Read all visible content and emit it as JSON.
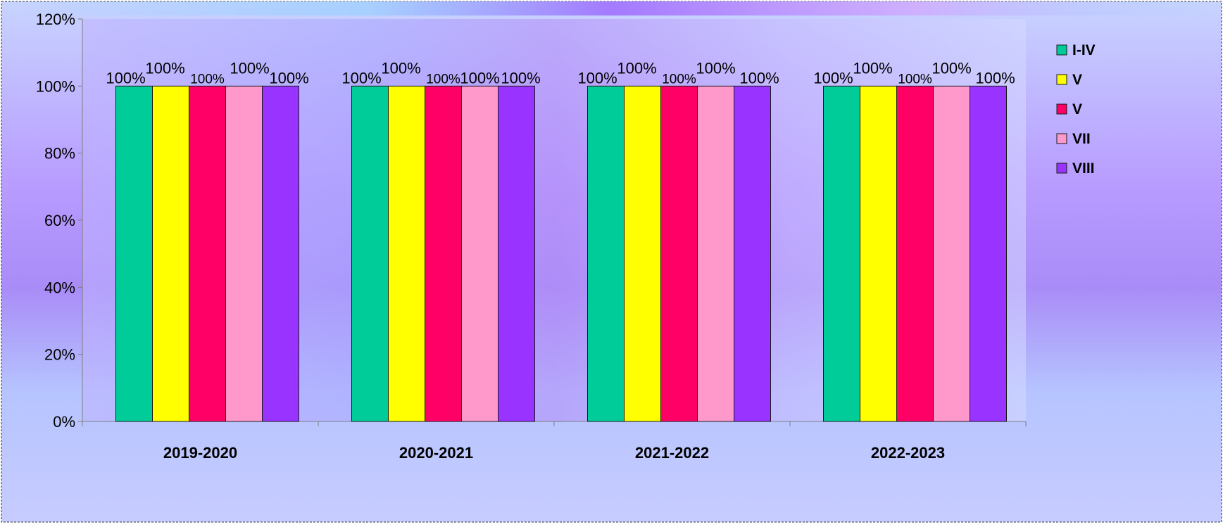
{
  "chart_data": {
    "type": "bar",
    "categories": [
      "2019-2020",
      "2020-2021",
      "2021-2022",
      "2022-2023"
    ],
    "series": [
      {
        "name": "I-IV",
        "color": "#00cc99",
        "values": [
          100,
          100,
          100,
          100
        ]
      },
      {
        "name": "V",
        "color": "#ffff00",
        "values": [
          100,
          100,
          100,
          100
        ]
      },
      {
        "name": "V",
        "color": "#ff0066",
        "values": [
          100,
          100,
          100,
          100
        ]
      },
      {
        "name": "VII",
        "color": "#ff99cc",
        "values": [
          100,
          100,
          100,
          100
        ]
      },
      {
        "name": "VIII",
        "color": "#9933ff",
        "values": [
          100,
          100,
          100,
          100
        ]
      }
    ],
    "data_labels": [
      "100%",
      "100%",
      "100%",
      "100%",
      "100%"
    ],
    "y_ticks": [
      "0%",
      "20%",
      "40%",
      "60%",
      "80%",
      "100%",
      "120%"
    ],
    "ylim": [
      0,
      120
    ],
    "y_unit": "%",
    "legend_position": "right",
    "grid": false
  }
}
